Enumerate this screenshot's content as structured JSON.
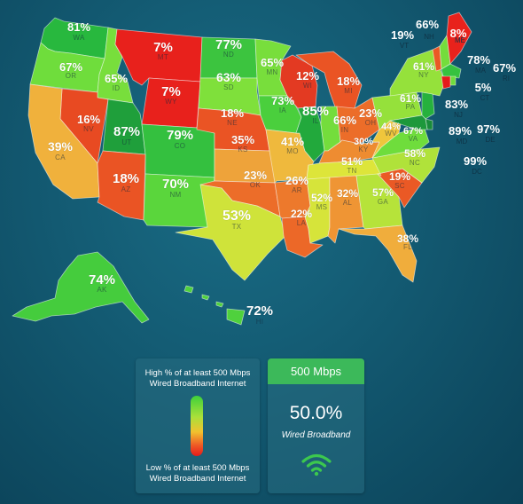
{
  "states": [
    {
      "abbr": "WA",
      "pct": "81%",
      "color": "#28b83e"
    },
    {
      "abbr": "OR",
      "pct": "67%",
      "color": "#6fdd3c"
    },
    {
      "abbr": "ID",
      "pct": "65%",
      "color": "#78de3c"
    },
    {
      "abbr": "MT",
      "pct": "7%",
      "color": "#e8211c"
    },
    {
      "abbr": "WY",
      "pct": "7%",
      "color": "#e8211c"
    },
    {
      "abbr": "ND",
      "pct": "77%",
      "color": "#3cc43f"
    },
    {
      "abbr": "SD",
      "pct": "63%",
      "color": "#7fe03b"
    },
    {
      "abbr": "MN",
      "pct": "65%",
      "color": "#78de3c"
    },
    {
      "abbr": "WI",
      "pct": "12%",
      "color": "#e33a22"
    },
    {
      "abbr": "MI",
      "pct": "18%",
      "color": "#ea5424"
    },
    {
      "abbr": "NV",
      "pct": "16%",
      "color": "#e84a22"
    },
    {
      "abbr": "CA",
      "pct": "39%",
      "color": "#f0b13c"
    },
    {
      "abbr": "UT",
      "pct": "87%",
      "color": "#1f9f3b"
    },
    {
      "abbr": "CO",
      "pct": "79%",
      "color": "#34c03f"
    },
    {
      "abbr": "AZ",
      "pct": "18%",
      "color": "#ea5424"
    },
    {
      "abbr": "NM",
      "pct": "70%",
      "color": "#5ad63c"
    },
    {
      "abbr": "NE",
      "pct": "18%",
      "color": "#ea5424"
    },
    {
      "abbr": "KS",
      "pct": "35%",
      "color": "#eea33a"
    },
    {
      "abbr": "OK",
      "pct": "23%",
      "color": "#ec6d29"
    },
    {
      "abbr": "TX",
      "pct": "53%",
      "color": "#cfe33a"
    },
    {
      "abbr": "IA",
      "pct": "73%",
      "color": "#4acf3d"
    },
    {
      "abbr": "MO",
      "pct": "41%",
      "color": "#efb93d"
    },
    {
      "abbr": "AR",
      "pct": "26%",
      "color": "#ed792c"
    },
    {
      "abbr": "LA",
      "pct": "22%",
      "color": "#ec6828"
    },
    {
      "abbr": "IL",
      "pct": "85%",
      "color": "#22a93c"
    },
    {
      "abbr": "IN",
      "pct": "66%",
      "color": "#74dd3c"
    },
    {
      "abbr": "OH",
      "pct": "23%",
      "color": "#ec6d29"
    },
    {
      "abbr": "KY",
      "pct": "30%",
      "color": "#ee8c31"
    },
    {
      "abbr": "TN",
      "pct": "51%",
      "color": "#dde53a"
    },
    {
      "abbr": "MS",
      "pct": "52%",
      "color": "#d6e43a"
    },
    {
      "abbr": "AL",
      "pct": "32%",
      "color": "#ef9534"
    },
    {
      "abbr": "GA",
      "pct": "57%",
      "color": "#b6e33a"
    },
    {
      "abbr": "FL",
      "pct": "38%",
      "color": "#f0ad3c"
    },
    {
      "abbr": "SC",
      "pct": "19%",
      "color": "#ea5925"
    },
    {
      "abbr": "NC",
      "pct": "58%",
      "color": "#b0e23a"
    },
    {
      "abbr": "VA",
      "pct": "67%",
      "color": "#6fdd3c"
    },
    {
      "abbr": "WV",
      "pct": "44%",
      "color": "#efc63c"
    },
    {
      "abbr": "PA",
      "pct": "61%",
      "color": "#95e13b"
    },
    {
      "abbr": "NY",
      "pct": "61%",
      "color": "#95e13b"
    },
    {
      "abbr": "VT",
      "pct": "19%",
      "color": "#ea5925"
    },
    {
      "abbr": "NH",
      "pct": "66%",
      "color": "#74dd3c"
    },
    {
      "abbr": "ME",
      "pct": "8%",
      "color": "#e8221c"
    },
    {
      "abbr": "MA",
      "pct": "78%",
      "color": "#36c23f"
    },
    {
      "abbr": "RI",
      "pct": "67%",
      "color": "#6fdd3c"
    },
    {
      "abbr": "CT",
      "pct": "5%",
      "color": "#e51b1b"
    },
    {
      "abbr": "NJ",
      "pct": "83%",
      "color": "#26b13d"
    },
    {
      "abbr": "DE",
      "pct": "97%",
      "color": "#198a3a"
    },
    {
      "abbr": "MD",
      "pct": "89%",
      "color": "#1d983b"
    },
    {
      "abbr": "DC",
      "pct": "99%",
      "color": "#17853a"
    },
    {
      "abbr": "AK",
      "pct": "74%",
      "color": "#45cc3d"
    },
    {
      "abbr": "HI",
      "pct": "72%",
      "color": "#4fd13d"
    }
  ],
  "legend": {
    "high_label": "High % of at least 500 Mbps Wired Broadband Internet",
    "low_label": "Low % of at least 500 Mbps Wired Broadband Internet"
  },
  "stat": {
    "speed": "500 Mbps",
    "value": "50.0%",
    "label": "Wired Broadband",
    "icon": "wifi-icon"
  }
}
